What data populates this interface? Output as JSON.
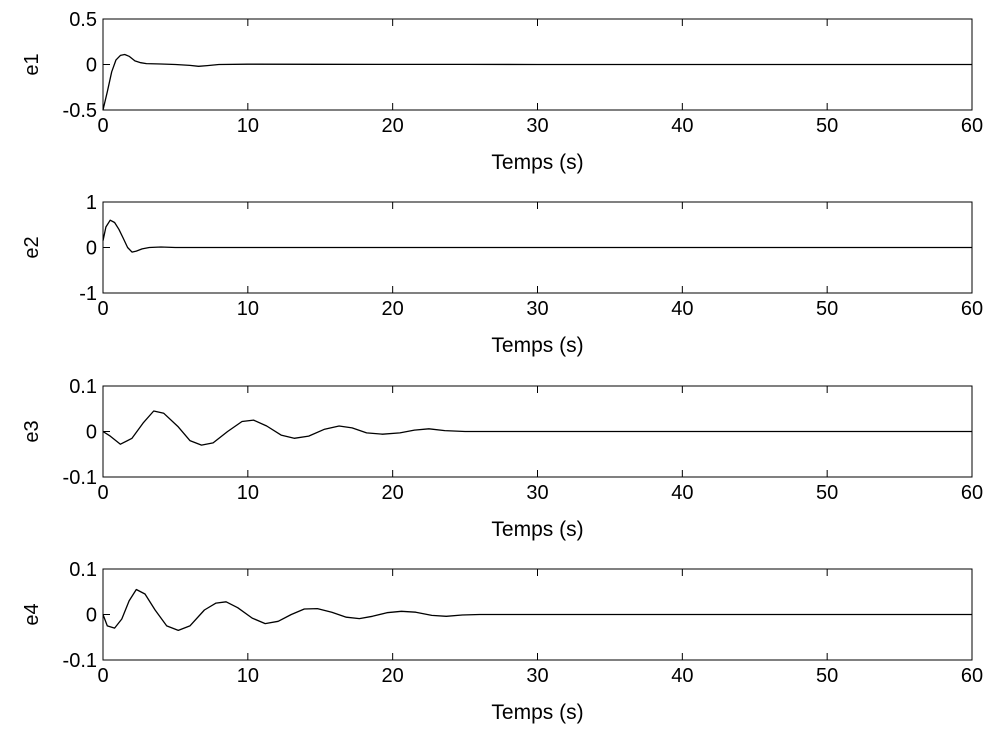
{
  "chart_data": [
    {
      "type": "line",
      "ylabel": "e1",
      "xlabel": "Temps (s)",
      "xlim": [
        0,
        60
      ],
      "ylim": [
        -0.5,
        0.5
      ],
      "xticks": [
        "0",
        "10",
        "20",
        "30",
        "40",
        "50",
        "60"
      ],
      "yticks": [
        "-0.5",
        "0",
        "0.5"
      ],
      "grid": false,
      "series": [
        {
          "x": [
            0,
            0.3,
            0.6,
            0.9,
            1.2,
            1.5,
            1.8,
            2.2,
            2.6,
            3.0,
            4,
            5,
            6,
            6.6,
            7.2,
            8,
            10,
            15,
            20,
            25,
            30,
            40,
            50,
            60
          ],
          "y": [
            -0.5,
            -0.3,
            -0.08,
            0.05,
            0.1,
            0.11,
            0.09,
            0.04,
            0.02,
            0.01,
            0.005,
            0.0,
            -0.01,
            -0.02,
            -0.012,
            0.0,
            0.003,
            0.002,
            0.001,
            0.001,
            0.0,
            0.0,
            0.0,
            0.0
          ]
        }
      ]
    },
    {
      "type": "line",
      "ylabel": "e2",
      "xlabel": "Temps (s)",
      "xlim": [
        0,
        60
      ],
      "ylim": [
        -1,
        1
      ],
      "xticks": [
        "0",
        "10",
        "20",
        "30",
        "40",
        "50",
        "60"
      ],
      "yticks": [
        "-1",
        "0",
        "1"
      ],
      "grid": false,
      "series": [
        {
          "x": [
            0,
            0.2,
            0.5,
            0.8,
            1.1,
            1.4,
            1.7,
            2.0,
            2.3,
            2.7,
            3.2,
            4,
            5,
            7,
            10,
            20,
            30,
            40,
            50,
            60
          ],
          "y": [
            0.15,
            0.45,
            0.6,
            0.55,
            0.4,
            0.2,
            0.0,
            -0.1,
            -0.08,
            -0.03,
            0.0,
            0.01,
            0.0,
            0.0,
            0.0,
            0.0,
            0.0,
            0.0,
            0.0,
            0.0
          ]
        }
      ]
    },
    {
      "type": "line",
      "ylabel": "e3",
      "xlabel": "Temps (s)",
      "xlim": [
        0,
        60
      ],
      "ylim": [
        -0.1,
        0.1
      ],
      "xticks": [
        "0",
        "10",
        "20",
        "30",
        "40",
        "50",
        "60"
      ],
      "yticks": [
        "-0.1",
        "0",
        "0.1"
      ],
      "grid": false,
      "series": [
        {
          "x": [
            0,
            0.5,
            1.2,
            2.0,
            2.8,
            3.5,
            4.2,
            5.2,
            6.0,
            6.8,
            7.6,
            8.6,
            9.6,
            10.4,
            11.3,
            12.3,
            13.2,
            14.2,
            15.3,
            16.3,
            17.2,
            18.2,
            19.3,
            20.5,
            21.5,
            22.5,
            23.6,
            25,
            28,
            32,
            40,
            50,
            60
          ],
          "y": [
            0.0,
            -0.01,
            -0.028,
            -0.015,
            0.02,
            0.045,
            0.04,
            0.01,
            -0.02,
            -0.03,
            -0.025,
            0.0,
            0.022,
            0.025,
            0.012,
            -0.008,
            -0.015,
            -0.01,
            0.005,
            0.012,
            0.008,
            -0.003,
            -0.006,
            -0.003,
            0.003,
            0.006,
            0.002,
            0.0,
            0.0,
            0.0,
            0.0,
            0.0,
            0.0
          ]
        }
      ]
    },
    {
      "type": "line",
      "ylabel": "e4",
      "xlabel": "Temps (s)",
      "xlim": [
        0,
        60
      ],
      "ylim": [
        -0.1,
        0.1
      ],
      "xticks": [
        "0",
        "10",
        "20",
        "30",
        "40",
        "50",
        "60"
      ],
      "yticks": [
        "-0.1",
        "0",
        "0.1"
      ],
      "grid": false,
      "series": [
        {
          "x": [
            0,
            0.3,
            0.8,
            1.3,
            1.8,
            2.3,
            2.9,
            3.6,
            4.4,
            5.2,
            6.0,
            7.0,
            7.8,
            8.5,
            9.3,
            10.3,
            11.2,
            12.1,
            13.0,
            13.9,
            14.8,
            15.8,
            16.8,
            17.7,
            18.6,
            19.6,
            20.6,
            21.6,
            22.7,
            23.7,
            24.8,
            26,
            28,
            30,
            40,
            50,
            60
          ],
          "y": [
            0.0,
            -0.025,
            -0.03,
            -0.01,
            0.03,
            0.055,
            0.045,
            0.01,
            -0.025,
            -0.035,
            -0.025,
            0.01,
            0.025,
            0.028,
            0.015,
            -0.008,
            -0.02,
            -0.015,
            0.0,
            0.012,
            0.013,
            0.005,
            -0.006,
            -0.009,
            -0.004,
            0.004,
            0.007,
            0.005,
            -0.002,
            -0.004,
            -0.001,
            0.0,
            0.0,
            0.0,
            0.0,
            0.0,
            0.0
          ]
        }
      ]
    }
  ]
}
